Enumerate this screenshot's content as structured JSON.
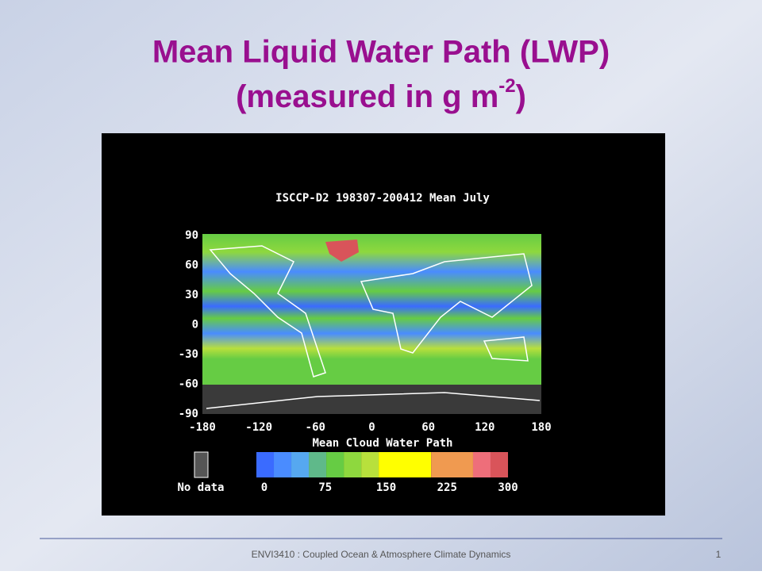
{
  "slide": {
    "title_line1": "Mean Liquid Water Path (LWP)",
    "title_line2": "(measured in g m",
    "title_superscript": "-2",
    "title_close": ")"
  },
  "map": {
    "title": "ISCCP-D2 198307-200412 Mean July",
    "lat_labels": [
      90,
      60,
      30,
      0,
      -30,
      -60,
      -90
    ],
    "lon_labels": [
      -180,
      -120,
      -60,
      0,
      60,
      120,
      180
    ],
    "colorbar_title": "Mean Cloud Water Path",
    "colorbar_labels": [
      0,
      75,
      150,
      225,
      300
    ],
    "colorbar_colors": [
      "#3a6bff",
      "#4a8cff",
      "#56a8f0",
      "#5fb98a",
      "#66cc44",
      "#8ed83e",
      "#b8e03c",
      "#ffff00",
      "#f09a50",
      "#ee6e7a",
      "#d9545a"
    ],
    "no_data_label": "No data"
  },
  "footer": {
    "text": "ENVI3410 : Coupled Ocean & Atmosphere Climate Dynamics",
    "page": "1"
  }
}
